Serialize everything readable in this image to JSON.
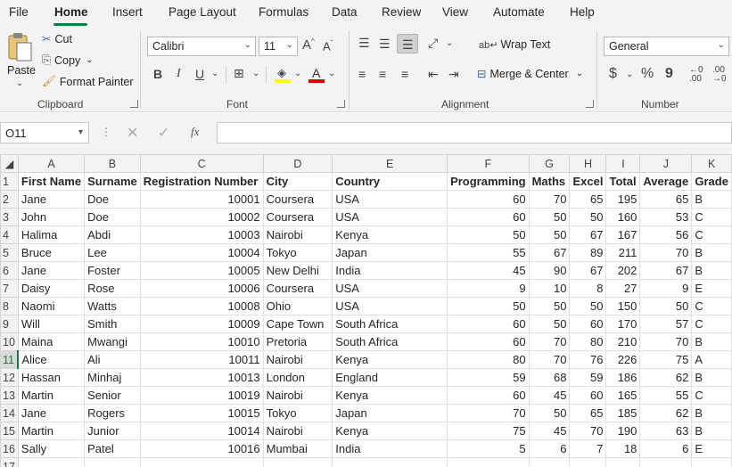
{
  "menu": {
    "tabs": [
      "File",
      "Home",
      "Insert",
      "Page Layout",
      "Formulas",
      "Data",
      "Review",
      "View",
      "Automate",
      "Help"
    ],
    "active": "Home"
  },
  "ribbon": {
    "clipboard": {
      "paste": "Paste",
      "cut": "Cut",
      "copy": "Copy",
      "format_painter": "Format Painter",
      "label": "Clipboard"
    },
    "font": {
      "family": "Calibri",
      "size": "11",
      "bold": "B",
      "italic": "I",
      "underline": "U",
      "font_color_letter": "A",
      "label": "Font"
    },
    "alignment": {
      "wrap_text": "Wrap Text",
      "merge_center": "Merge & Center",
      "label": "Alignment"
    },
    "number": {
      "format": "General",
      "currency": "$",
      "percent": "%",
      "comma": "9",
      "label": "Number"
    }
  },
  "formula_bar": {
    "name_box": "O11",
    "fx": "fx",
    "content": ""
  },
  "sheet": {
    "columns": [
      "A",
      "B",
      "C",
      "D",
      "E",
      "F",
      "G",
      "H",
      "I",
      "J",
      "K"
    ],
    "headers": [
      "First Name",
      "Surname",
      "Registration Number",
      "City",
      "Country",
      "Programming",
      "Maths",
      "Excel",
      "Total",
      "Average",
      "Grade"
    ],
    "rows": [
      [
        "Jane",
        "Doe",
        "10001",
        "Coursera",
        "USA",
        "60",
        "70",
        "65",
        "195",
        "65",
        "B"
      ],
      [
        "John",
        "Doe",
        "10002",
        "Coursera",
        "USA",
        "60",
        "50",
        "50",
        "160",
        "53",
        "C"
      ],
      [
        "Halima",
        "Abdi",
        "10003",
        "Nairobi",
        "Kenya",
        "50",
        "50",
        "67",
        "167",
        "56",
        "C"
      ],
      [
        "Bruce",
        "Lee",
        "10004",
        "Tokyo",
        "Japan",
        "55",
        "67",
        "89",
        "211",
        "70",
        "B"
      ],
      [
        "Jane",
        "Foster",
        "10005",
        "New Delhi",
        "India",
        "45",
        "90",
        "67",
        "202",
        "67",
        "B"
      ],
      [
        "Daisy",
        "Rose",
        "10006",
        "Coursera",
        "USA",
        "9",
        "10",
        "8",
        "27",
        "9",
        "E"
      ],
      [
        "Naomi",
        "Watts",
        "10008",
        "Ohio",
        "USA",
        "50",
        "50",
        "50",
        "150",
        "50",
        "C"
      ],
      [
        "Will",
        "Smith",
        "10009",
        "Cape Town",
        "South Africa",
        "60",
        "50",
        "60",
        "170",
        "57",
        "C"
      ],
      [
        "Maina",
        "Mwangi",
        "10010",
        "Pretoria",
        "South Africa",
        "60",
        "70",
        "80",
        "210",
        "70",
        "B"
      ],
      [
        "Alice",
        "Ali",
        "10011",
        "Nairobi",
        "Kenya",
        "80",
        "70",
        "76",
        "226",
        "75",
        "A"
      ],
      [
        "Hassan",
        "Minhaj",
        "10013",
        "London",
        "England",
        "59",
        "68",
        "59",
        "186",
        "62",
        "B"
      ],
      [
        "Martin",
        "Senior",
        "10019",
        "Nairobi",
        "Kenya",
        "60",
        "45",
        "60",
        "165",
        "55",
        "C"
      ],
      [
        "Jane",
        "Rogers",
        "10015",
        "Tokyo",
        "Japan",
        "70",
        "50",
        "65",
        "185",
        "62",
        "B"
      ],
      [
        "Martin",
        "Junior",
        "10014",
        "Nairobi",
        "Kenya",
        "75",
        "45",
        "70",
        "190",
        "63",
        "B"
      ],
      [
        "Sally",
        "Patel",
        "10016",
        "Mumbai",
        "India",
        "5",
        "6",
        "7",
        "18",
        "6",
        "E"
      ]
    ],
    "row_numbers": [
      "1",
      "2",
      "3",
      "4",
      "5",
      "6",
      "7",
      "8",
      "9",
      "10",
      "11",
      "12",
      "13",
      "14",
      "15",
      "16",
      "17"
    ],
    "selected_row": "11"
  }
}
